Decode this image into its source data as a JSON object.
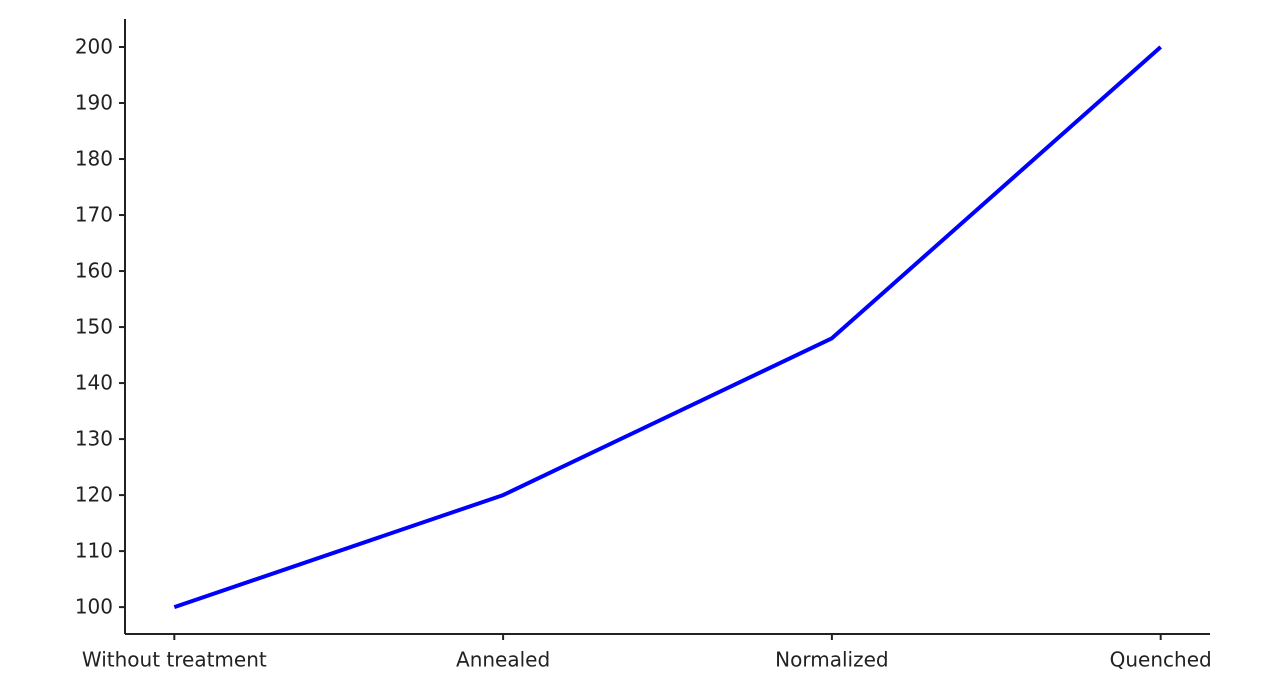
{
  "chart_data": {
    "type": "line",
    "categories": [
      "Without treatment",
      "Annealed",
      "Normalized",
      "Quenched"
    ],
    "series": [
      {
        "values": [
          100,
          120,
          148,
          200
        ],
        "color": "#0000ff"
      }
    ],
    "ylim": [
      95.2,
      205
    ],
    "yticks": [
      100,
      110,
      120,
      130,
      140,
      150,
      160,
      170,
      180,
      190,
      200
    ],
    "grid": false
  }
}
